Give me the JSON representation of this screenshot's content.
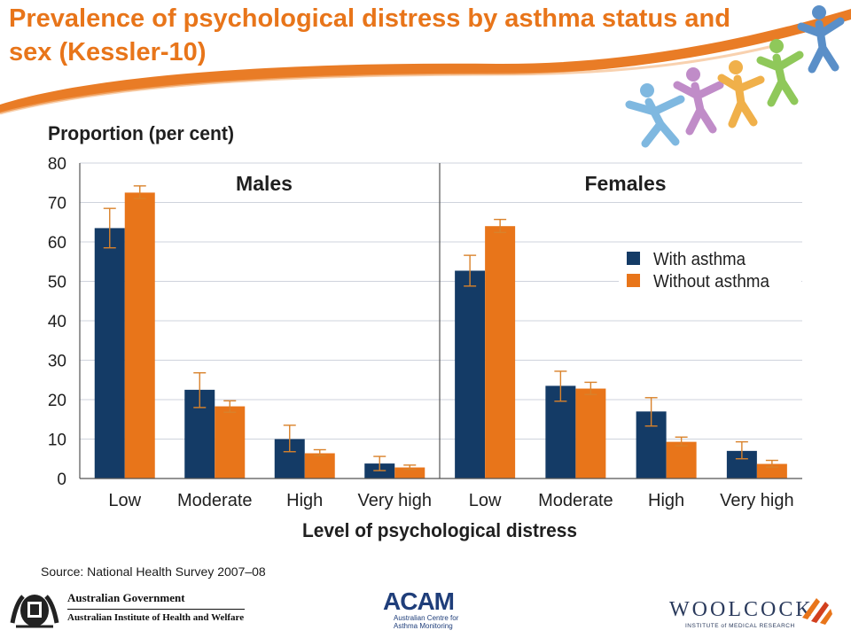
{
  "slide": {
    "title": "Prevalence of psychological distress by asthma status and sex (Kessler-10)",
    "source": "Source: National Health Survey 2007–08",
    "accent_color": "#e8751a"
  },
  "footer": {
    "gov_line1": "Australian Government",
    "gov_line2": "Australian Institute of Health and Welfare",
    "acam_name": "ACAM",
    "acam_line1": "Australian Centre for",
    "acam_line2": "Asthma Monitoring",
    "woolcock_name": "WOOLCOCK",
    "woolcock_sub": "INSTITUTE of MEDICAL RESEARCH"
  },
  "chart_data": {
    "type": "bar",
    "ylabel": "Proportion (per cent)",
    "xlabel": "Level of psychological distress",
    "ylim": [
      0,
      80
    ],
    "yticks": [
      0,
      10,
      20,
      30,
      40,
      50,
      60,
      70,
      80
    ],
    "grid": true,
    "legend_position": "right",
    "panels": [
      {
        "title": "Males",
        "categories": [
          "Low",
          "Moderate",
          "High",
          "Very high"
        ],
        "series": [
          {
            "name": "With asthma",
            "color": "#143b66",
            "values": [
              63.5,
              22.5,
              10.0,
              3.8
            ],
            "err_low": [
              58.5,
              18.0,
              6.8,
              2.0
            ],
            "err_high": [
              68.5,
              26.8,
              13.5,
              5.6
            ]
          },
          {
            "name": "Without asthma",
            "color": "#e8751a",
            "values": [
              72.5,
              18.3,
              6.4,
              2.8
            ],
            "err_low": [
              71.0,
              16.8,
              5.8,
              2.3
            ],
            "err_high": [
              74.2,
              19.7,
              7.3,
              3.4
            ]
          }
        ]
      },
      {
        "title": "Females",
        "categories": [
          "Low",
          "Moderate",
          "High",
          "Very high"
        ],
        "series": [
          {
            "name": "With asthma",
            "color": "#143b66",
            "values": [
              52.7,
              23.5,
              17.0,
              7.0
            ],
            "err_low": [
              48.8,
              19.6,
              13.3,
              5.0
            ],
            "err_high": [
              56.6,
              27.2,
              20.5,
              9.3
            ]
          },
          {
            "name": "Without asthma",
            "color": "#e8751a",
            "values": [
              64.0,
              22.8,
              9.3,
              3.7
            ],
            "err_low": [
              62.4,
              21.3,
              8.3,
              2.9
            ],
            "err_high": [
              65.7,
              24.4,
              10.5,
              4.6
            ]
          }
        ]
      }
    ]
  }
}
